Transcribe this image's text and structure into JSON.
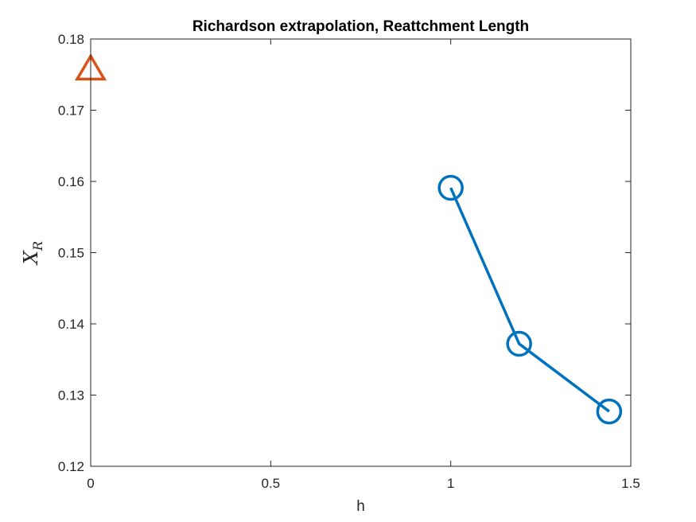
{
  "chart_data": {
    "type": "line",
    "title": "Richardson extrapolation, Reattchment Length",
    "xlabel": "h",
    "ylabel": {
      "main": "X",
      "subscript": "R"
    },
    "xlim": [
      0,
      1.5
    ],
    "ylim": [
      0.12,
      0.18
    ],
    "xticks": [
      0,
      0.5,
      1,
      1.5
    ],
    "xtick_labels": [
      "0",
      "0.5",
      "1",
      "1.5"
    ],
    "yticks": [
      0.12,
      0.13,
      0.14,
      0.15,
      0.16,
      0.17,
      0.18
    ],
    "ytick_labels": [
      "0.12",
      "0.13",
      "0.14",
      "0.15",
      "0.16",
      "0.17",
      "0.18"
    ],
    "grid": false,
    "box": true,
    "series": [
      {
        "x": [
          1.0,
          1.19,
          1.44
        ],
        "y": [
          0.1591,
          0.1372,
          0.1277
        ],
        "marker": "circle",
        "line": true,
        "color": "#0072BD"
      },
      {
        "x": [
          0
        ],
        "y": [
          0.1757
        ],
        "marker": "triangle",
        "line": false,
        "color": "#D95319"
      }
    ]
  }
}
